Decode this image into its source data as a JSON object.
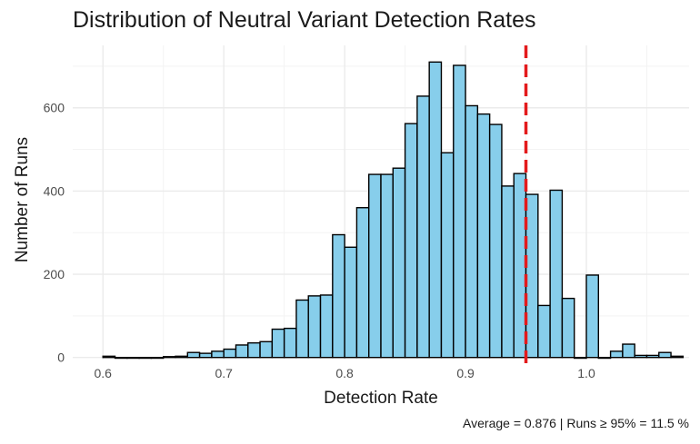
{
  "chart_data": {
    "type": "bar",
    "title": "Distribution of Neutral Variant Detection Rates",
    "xlabel": "Detection Rate",
    "ylabel": "Number of Runs",
    "caption": "Average = 0.876 | Runs ≥ 95% = 11.5 %",
    "x_ticks": [
      "0.6",
      "0.7",
      "0.8",
      "0.9",
      "1.0"
    ],
    "x_tick_values": [
      0.6,
      0.7,
      0.8,
      0.9,
      1.0
    ],
    "y_ticks": [
      "0",
      "200",
      "400",
      "600"
    ],
    "y_tick_values": [
      0,
      200,
      400,
      600
    ],
    "xlim": [
      0.575,
      1.085
    ],
    "ylim": [
      -5,
      750
    ],
    "grid": true,
    "bin_width": 0.01,
    "bins_start": [
      0.6,
      0.61,
      0.62,
      0.63,
      0.64,
      0.65,
      0.66,
      0.67,
      0.68,
      0.69,
      0.7,
      0.71,
      0.72,
      0.73,
      0.74,
      0.75,
      0.76,
      0.77,
      0.78,
      0.79,
      0.8,
      0.81,
      0.82,
      0.83,
      0.84,
      0.85,
      0.86,
      0.87,
      0.88,
      0.89,
      0.9,
      0.91,
      0.92,
      0.93,
      0.94,
      0.95,
      0.96,
      0.97,
      0.98,
      0.99,
      1.0,
      1.01,
      1.02,
      1.03,
      1.04,
      1.05,
      1.06,
      1.07
    ],
    "values": [
      3,
      0,
      0,
      0,
      0,
      2,
      3,
      12,
      10,
      15,
      20,
      30,
      35,
      38,
      68,
      70,
      138,
      148,
      150,
      295,
      265,
      360,
      440,
      440,
      455,
      562,
      628,
      710,
      492,
      702,
      605,
      585,
      560,
      412,
      442,
      392,
      125,
      402,
      142,
      0,
      198,
      0,
      15,
      32,
      5,
      5,
      12,
      3
    ],
    "reference_line": {
      "x": 0.95,
      "color": "#e31a1c",
      "style": "dashed"
    },
    "colors": {
      "bar_fill": "#87ceeb",
      "bar_stroke": "#000000",
      "grid": "#ebebeb"
    }
  }
}
